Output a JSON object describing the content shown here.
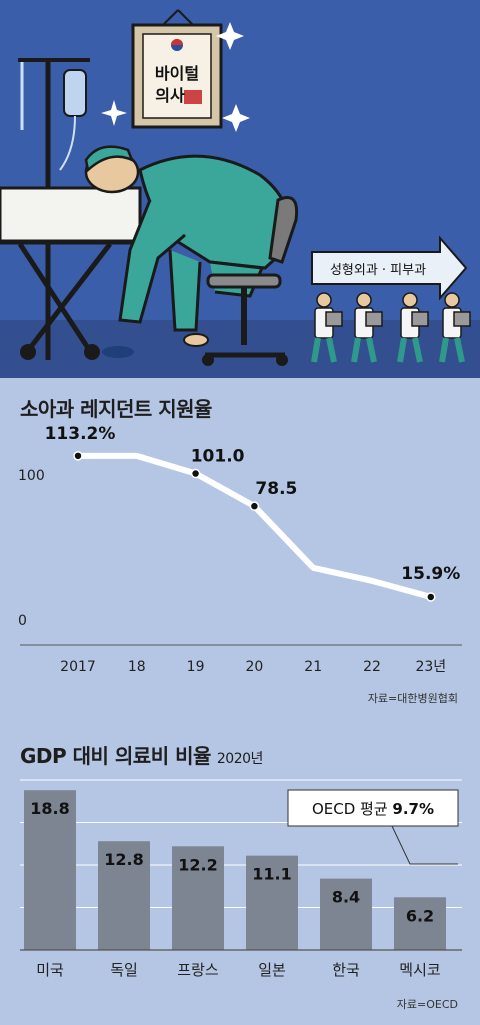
{
  "illustration": {
    "frame_text": [
      "바이털",
      "의사"
    ],
    "arrow_text": "성형외과 · 피부과"
  },
  "chart1": {
    "title": "소아과 레지던트 지원율",
    "source": "자료=대한병원협회"
  },
  "chart2": {
    "title": "GDP 대비 의료비 비율",
    "year": "2020년",
    "source": "자료=OECD",
    "callout": {
      "prefix": "OECD 평균 ",
      "value": "9.7%"
    }
  },
  "colors": {
    "background": "#b5c6e4",
    "illustration_bg": "#3a5eaa",
    "bar": "#7d8593",
    "line": "#ffffff"
  },
  "chart_data": [
    {
      "type": "line",
      "title": "소아과 레지던트 지원율",
      "x": [
        "2017",
        "18",
        "19",
        "20",
        "21",
        "22",
        "23년"
      ],
      "values": [
        113.2,
        113.2,
        101.0,
        78.5,
        36.0,
        27.0,
        15.9
      ],
      "labels": [
        "113.2%",
        null,
        "101.0",
        "78.5",
        null,
        null,
        "15.9%"
      ],
      "yticks": [
        0,
        100
      ],
      "ylim": [
        0,
        130
      ],
      "grid": false
    },
    {
      "type": "bar",
      "title": "GDP 대비 의료비 비율",
      "categories": [
        "미국",
        "독일",
        "프랑스",
        "일본",
        "한국",
        "멕시코"
      ],
      "values": [
        18.8,
        12.8,
        12.2,
        11.1,
        8.4,
        6.2
      ],
      "labels": [
        "18.8",
        "12.8",
        "12.2",
        "11.1",
        "8.4",
        "6.2"
      ],
      "ylim": [
        0,
        20
      ],
      "grid": true
    }
  ]
}
